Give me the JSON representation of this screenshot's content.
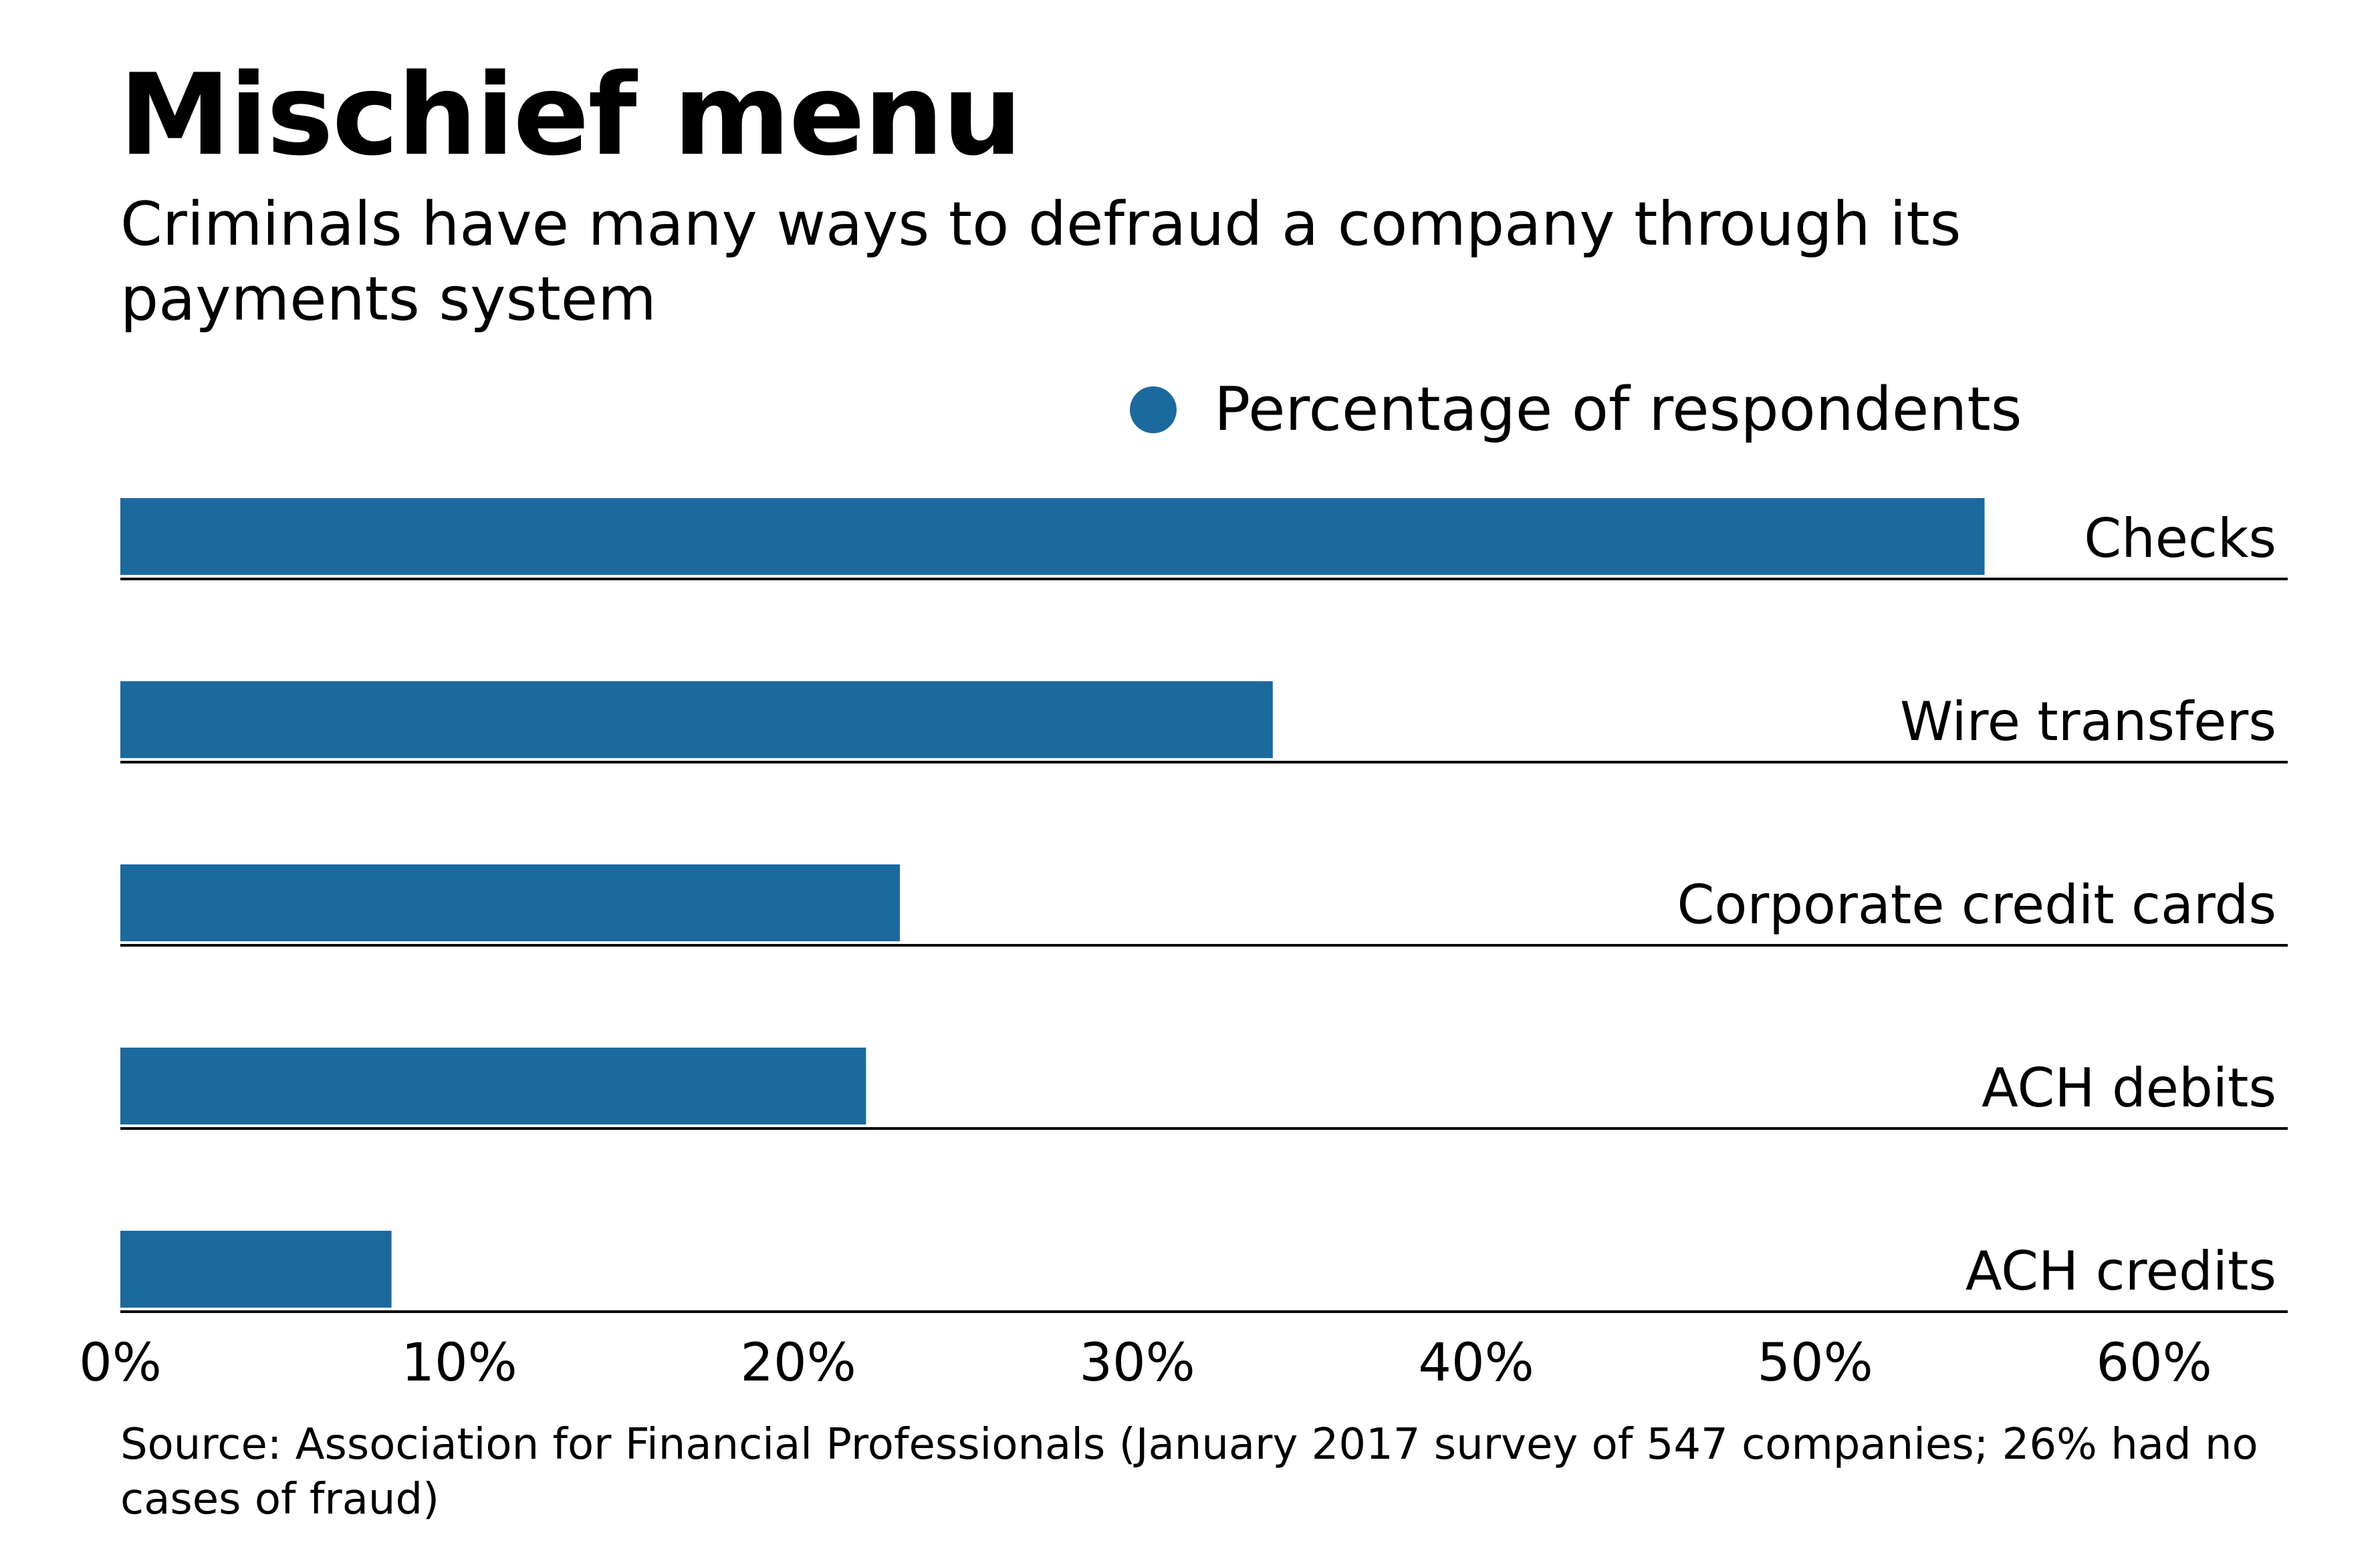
{
  "chart_data": {
    "type": "bar",
    "orientation": "horizontal",
    "title": "Mischief menu",
    "subtitle": "Criminals have many ways to defraud a company through its payments system",
    "categories": [
      "Checks",
      "Wire transfers",
      "Corporate credit cards",
      "ACH debits",
      "ACH credits"
    ],
    "series": [
      {
        "name": "Percentage of respondents",
        "values": [
          55,
          34,
          23,
          22,
          8
        ],
        "color": "#1c699e"
      }
    ],
    "xlabel": "",
    "ylabel": "",
    "xlim": [
      0,
      64
    ],
    "xticks": [
      0,
      10,
      20,
      30,
      40,
      50,
      60
    ],
    "xtick_labels": [
      "0%",
      "10%",
      "20%",
      "30%",
      "40%",
      "50%",
      "60%"
    ],
    "legend_position": "top-right",
    "grid": false,
    "source": "Source: Association for Financial Professionals (January 2017 survey of 547 companies; 26% had no cases of fraud)"
  }
}
